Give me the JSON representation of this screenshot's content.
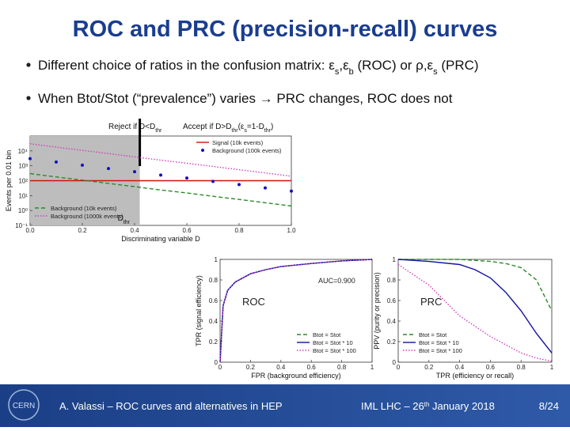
{
  "header": {
    "title": "ROC and PRC (precision-recall) curves"
  },
  "bullets": [
    [
      "Different choice of ratios in the confusion matrix: ε",
      "s",
      ",ε",
      "b",
      " (ROC) or ρ,ε",
      "s",
      " (PRC)"
    ],
    [
      "When Btot/Stot (“prevalence”) varies ",
      "→",
      " PRC changes, ROC does not"
    ]
  ],
  "figure_labels": {
    "reject": [
      "Reject if D<D",
      "thr"
    ],
    "accept": [
      "Accept if D>D",
      "thr",
      "(ε",
      "s",
      "=1-D",
      "thr",
      ")"
    ],
    "threshold": [
      "D",
      "thr"
    ]
  },
  "chart_data": [
    {
      "type": "line",
      "xlabel": "Discriminating variable D",
      "ylabel": "Events per 0.01 bin",
      "log_y": true,
      "threshold": 0.42,
      "shade_color": "#bdbdbd",
      "x": [
        0,
        0.1,
        0.2,
        0.3,
        0.4,
        0.5,
        0.6,
        0.7,
        0.8,
        0.9,
        1
      ],
      "series": [
        {
          "name": "Signal (10k events)",
          "color": "#d01010",
          "style": "solid",
          "values": [
            100,
            100,
            100,
            100,
            100,
            100,
            100,
            100,
            100,
            100,
            100
          ]
        },
        {
          "name": "Background (100k events)",
          "color": "#1010c0",
          "style": "points",
          "values": [
            3000,
            1800,
            1100,
            660,
            400,
            240,
            150,
            90,
            55,
            33,
            20
          ]
        },
        {
          "name": "Background (10k events)",
          "color": "#2a8a2a",
          "style": "dashed",
          "values": [
            300,
            180,
            110,
            66,
            40,
            24,
            15,
            9,
            5.5,
            3.3,
            2
          ]
        },
        {
          "name": "Background (1000k events)",
          "color": "#d040c0",
          "style": "dotted",
          "values": [
            30000,
            18000,
            11000,
            6600,
            4000,
            2400,
            1500,
            900,
            550,
            330,
            200
          ]
        }
      ],
      "xlim": [
        0,
        1
      ],
      "xticks": [
        {
          "value": 0,
          "label": "0.0"
        },
        0.2,
        0.4,
        0.6,
        0.8,
        {
          "value": 1,
          "label": "1.0"
        }
      ],
      "ylim": [
        0.1,
        100000
      ],
      "yticks": [
        {
          "value": 0.1,
          "label": "10⁻¹"
        },
        {
          "value": 1,
          "label": "10⁰"
        },
        {
          "value": 10,
          "label": "10¹"
        },
        {
          "value": 100,
          "label": "10²"
        },
        {
          "value": 1000,
          "label": "10³"
        },
        {
          "value": 10000,
          "label": "10⁴"
        }
      ]
    },
    {
      "type": "line",
      "xlabel": "FPR (background efficiency)",
      "ylabel": "TPR (signal efficiency)",
      "annotations": [
        "AUC=0.900",
        "ROC"
      ],
      "x": [
        0,
        0.02,
        0.05,
        0.1,
        0.2,
        0.3,
        0.4,
        0.6,
        0.8,
        1
      ],
      "series": [
        {
          "name": "Btot = Stot",
          "color": "#2a8a2a",
          "style": "dashed",
          "values": [
            0,
            0.55,
            0.7,
            0.78,
            0.86,
            0.9,
            0.93,
            0.96,
            0.985,
            1
          ]
        },
        {
          "name": "Btot = Stot * 10",
          "color": "#1010a0",
          "style": "solid",
          "values": [
            0,
            0.55,
            0.7,
            0.78,
            0.86,
            0.9,
            0.93,
            0.96,
            0.985,
            1
          ]
        },
        {
          "name": "Btot = Stot * 100",
          "color": "#d040c0",
          "style": "dotted",
          "values": [
            0,
            0.55,
            0.7,
            0.78,
            0.86,
            0.9,
            0.93,
            0.96,
            0.985,
            1
          ]
        }
      ],
      "xlim": [
        0,
        1
      ],
      "xticks": [
        0,
        0.2,
        0.4,
        0.6,
        0.8,
        1
      ],
      "ylim": [
        0,
        1
      ],
      "yticks": [
        0,
        0.2,
        0.4,
        0.6,
        0.8,
        1
      ]
    },
    {
      "type": "line",
      "xlabel": "TPR (efficiency or recall)",
      "ylabel": "PPV (purity or precision)",
      "annotations": [
        "PRC"
      ],
      "x": [
        0,
        0.2,
        0.4,
        0.5,
        0.6,
        0.7,
        0.8,
        0.9,
        1
      ],
      "series": [
        {
          "name": "Btot = Stot",
          "color": "#2a8a2a",
          "style": "dashed",
          "values": [
            1,
            1,
            1,
            0.99,
            0.98,
            0.96,
            0.92,
            0.8,
            0.5
          ]
        },
        {
          "name": "Btot = Stot * 10",
          "color": "#1010a0",
          "style": "solid",
          "values": [
            1,
            0.98,
            0.95,
            0.9,
            0.82,
            0.68,
            0.5,
            0.28,
            0.09
          ]
        },
        {
          "name": "Btot = Stot * 100",
          "color": "#d040c0",
          "style": "dotted",
          "values": [
            0.95,
            0.75,
            0.45,
            0.35,
            0.25,
            0.17,
            0.09,
            0.04,
            0.01
          ]
        }
      ],
      "xlim": [
        0,
        1
      ],
      "xticks": [
        0,
        0.2,
        0.4,
        0.6,
        0.8,
        1
      ],
      "ylim": [
        0,
        1
      ],
      "yticks": [
        0,
        0.2,
        0.4,
        0.6,
        0.8,
        1
      ]
    }
  ],
  "footer": {
    "logo": "CERN",
    "author": "A. Valassi – ROC curves and alternatives in HEP",
    "event": [
      "IML LHC – 26",
      "th",
      " January 2018"
    ],
    "page": "8/24"
  }
}
